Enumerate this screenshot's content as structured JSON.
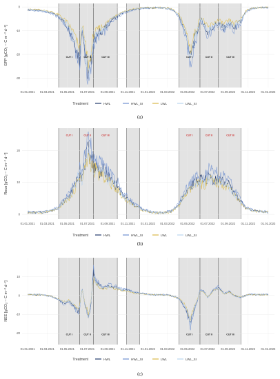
{
  "chart_data": [
    {
      "type": "line",
      "caption": "(a)",
      "ylabel": "GPP [gCO₂ – C m⁻² d⁻¹]",
      "ylim": [
        -34,
        1.5
      ],
      "yticks": [
        0,
        -10,
        -20,
        -30
      ],
      "xlim": [
        "2020-12-15",
        "2023-01-20"
      ],
      "xticks": [
        "01.01.2021",
        "01.03.2021",
        "01.05.2021",
        "01.07.2021",
        "01.09.2021",
        "01.11.2021",
        "01.01.2022",
        "01.03.2022",
        "01.05.2022",
        "01.07.2022",
        "01.09.2022",
        "01.11.2022",
        "01.01.2023"
      ],
      "cut_regions": [
        [
          "2021-04-05",
          "2022-11-25"
        ]
      ],
      "shaded_ranges": [
        [
          "2021-04-05",
          "2021-06-08"
        ],
        [
          "2021-06-08",
          "2021-07-20"
        ],
        [
          "2021-07-20",
          "2021-09-30"
        ],
        [
          "2021-10-28",
          "2021-12-07"
        ],
        [
          "2022-04-05",
          "2022-06-08"
        ],
        [
          "2022-06-08",
          "2022-08-03"
        ],
        [
          "2022-08-03",
          "2022-10-10"
        ]
      ],
      "cut_labels": [
        {
          "text": "CUT I",
          "x": "2021-05-07"
        },
        {
          "text": "CUT II",
          "x": "2021-07-01"
        },
        {
          "text": "CUT III",
          "x": "2021-08-25"
        },
        {
          "text": "CUT I",
          "x": "2022-05-07"
        },
        {
          "text": "CUT II",
          "x": "2022-07-05"
        },
        {
          "text": "CUT III",
          "x": "2022-09-08"
        }
      ],
      "cut_label_y": -21.5,
      "series_profile": [
        [
          "2021-01-01",
          -1.2
        ],
        [
          "2021-02-15",
          -1.6
        ],
        [
          "2021-03-15",
          -2.5
        ],
        [
          "2021-04-05",
          -4
        ],
        [
          "2021-04-20",
          -6
        ],
        [
          "2021-05-05",
          -9
        ],
        [
          "2021-05-20",
          -13
        ],
        [
          "2021-06-01",
          -19
        ],
        [
          "2021-06-08",
          -22
        ],
        [
          "2021-06-15",
          -8
        ],
        [
          "2021-06-25",
          -20
        ],
        [
          "2021-07-05",
          -30
        ],
        [
          "2021-07-12",
          -24
        ],
        [
          "2021-07-20",
          -14
        ],
        [
          "2021-08-05",
          -11
        ],
        [
          "2021-08-25",
          -9
        ],
        [
          "2021-09-15",
          -5
        ],
        [
          "2021-09-30",
          -4
        ],
        [
          "2021-10-15",
          -2.5
        ],
        [
          "2021-10-28",
          -2
        ],
        [
          "2021-11-20",
          -1
        ],
        [
          "2021-12-15",
          -0.5
        ],
        [
          "2022-02-01",
          -0.3
        ],
        [
          "2022-03-01",
          -0.5
        ],
        [
          "2022-03-20",
          -1.5
        ],
        [
          "2022-04-05",
          -4
        ],
        [
          "2022-04-20",
          -9
        ],
        [
          "2022-05-01",
          -15
        ],
        [
          "2022-05-10",
          -22
        ],
        [
          "2022-05-20",
          -15
        ],
        [
          "2022-06-01",
          -10
        ],
        [
          "2022-06-08",
          -5
        ],
        [
          "2022-06-20",
          -7
        ],
        [
          "2022-07-01",
          -11
        ],
        [
          "2022-07-20",
          -8
        ],
        [
          "2022-08-03",
          -7
        ],
        [
          "2022-08-20",
          -9
        ],
        [
          "2022-09-05",
          -7
        ],
        [
          "2022-09-20",
          -9
        ],
        [
          "2022-10-10",
          -6
        ],
        [
          "2022-10-25",
          -2
        ],
        [
          "2022-11-10",
          -0.8
        ],
        [
          "2022-12-01",
          -0.3
        ],
        [
          "2023-01-01",
          -0.2
        ]
      ],
      "series": [
        {
          "name": "HWL",
          "scale": 1.0,
          "color": "#223a6b"
        },
        {
          "name": "HWL_SI",
          "scale": 1.12,
          "color": "#6f8fd0"
        },
        {
          "name": "LWL",
          "scale": 0.82,
          "color": "#d9b846"
        },
        {
          "name": "LWL_SI",
          "scale": 0.95,
          "color": "#b9d4ee"
        }
      ]
    },
    {
      "type": "line",
      "caption": "(b)",
      "ylabel": "Reco [gCO₂ – C m⁻² d⁻¹]",
      "ylim": [
        -1.5,
        27
      ],
      "yticks": [
        0,
        10,
        20
      ],
      "xlim": [
        "2020-12-15",
        "2023-01-20"
      ],
      "xticks": [
        "01.01.2021",
        "01.03.2021",
        "01.05.2021",
        "01.07.2021",
        "01.09.2021",
        "01.11.2021",
        "01.01.2022",
        "01.03.2022",
        "01.05.2022",
        "01.07.2022",
        "01.09.2022",
        "01.11.2022",
        "01.01.2023"
      ],
      "shaded_ranges": [
        [
          "2021-04-05",
          "2021-06-08"
        ],
        [
          "2021-06-08",
          "2021-07-20"
        ],
        [
          "2021-07-20",
          "2021-09-30"
        ],
        [
          "2021-10-28",
          "2021-12-07"
        ],
        [
          "2022-04-05",
          "2022-06-08"
        ],
        [
          "2022-06-08",
          "2022-08-03"
        ],
        [
          "2022-08-03",
          "2022-10-10"
        ]
      ],
      "cut_labels": [
        {
          "text": "CUT I",
          "x": "2021-05-07"
        },
        {
          "text": "CUT II",
          "x": "2021-07-01"
        },
        {
          "text": "CUT III",
          "x": "2021-08-25"
        },
        {
          "text": "CUT I",
          "x": "2022-05-07"
        },
        {
          "text": "CUT II",
          "x": "2022-07-05"
        },
        {
          "text": "CUT III",
          "x": "2022-09-08"
        }
      ],
      "cut_label_y": 24.5,
      "series_profile": [
        [
          "2021-01-01",
          0.6
        ],
        [
          "2021-02-15",
          0.6
        ],
        [
          "2021-03-15",
          1.2
        ],
        [
          "2021-04-05",
          2
        ],
        [
          "2021-04-20",
          4
        ],
        [
          "2021-05-10",
          6
        ],
        [
          "2021-05-25",
          9
        ],
        [
          "2021-06-08",
          14
        ],
        [
          "2021-06-15",
          11
        ],
        [
          "2021-06-25",
          17
        ],
        [
          "2021-07-05",
          20
        ],
        [
          "2021-07-15",
          17
        ],
        [
          "2021-07-20",
          16
        ],
        [
          "2021-08-05",
          14
        ],
        [
          "2021-08-25",
          13
        ],
        [
          "2021-09-15",
          10
        ],
        [
          "2021-09-30",
          9
        ],
        [
          "2021-10-15",
          6
        ],
        [
          "2021-10-28",
          5
        ],
        [
          "2021-11-20",
          3
        ],
        [
          "2021-12-15",
          1.5
        ],
        [
          "2022-01-15",
          0.6
        ],
        [
          "2022-02-15",
          0.5
        ],
        [
          "2022-03-15",
          1
        ],
        [
          "2022-04-05",
          3
        ],
        [
          "2022-04-20",
          6
        ],
        [
          "2022-05-05",
          8
        ],
        [
          "2022-05-25",
          10
        ],
        [
          "2022-06-08",
          11
        ],
        [
          "2022-06-20",
          10
        ],
        [
          "2022-07-05",
          12
        ],
        [
          "2022-07-20",
          11
        ],
        [
          "2022-08-03",
          11
        ],
        [
          "2022-08-20",
          10
        ],
        [
          "2022-09-05",
          9
        ],
        [
          "2022-09-25",
          6
        ],
        [
          "2022-10-10",
          4
        ],
        [
          "2022-10-25",
          2
        ],
        [
          "2022-11-15",
          1.2
        ],
        [
          "2022-12-15",
          0.8
        ],
        [
          "2023-01-01",
          0.8
        ]
      ],
      "series": [
        {
          "name": "HWL",
          "scale": 1.0,
          "color": "#223a6b"
        },
        {
          "name": "HWL_SI",
          "scale": 1.15,
          "color": "#6f8fd0"
        },
        {
          "name": "LWL",
          "scale": 0.9,
          "color": "#d9b846"
        },
        {
          "name": "LWL_SI",
          "scale": 0.95,
          "color": "#b9d4ee"
        }
      ]
    },
    {
      "type": "line",
      "caption": "(c)",
      "ylabel": "NEE [gCO₂ – C m⁻² d⁻¹]",
      "ylim": [
        -26,
        20
      ],
      "yticks": [
        10,
        0,
        -10,
        -20
      ],
      "xlim": [
        "2020-12-15",
        "2023-01-20"
      ],
      "xticks": [
        "01.01.2021",
        "01.03.2021",
        "01.05.2021",
        "01.07.2021",
        "01.09.2021",
        "01.11.2021",
        "01.01.2022",
        "01.03.2022",
        "01.05.2022",
        "01.07.2022",
        "01.09.2022",
        "01.11.2022",
        "01.01.2023"
      ],
      "shaded_ranges": [
        [
          "2021-04-05",
          "2021-06-08"
        ],
        [
          "2021-06-08",
          "2021-07-20"
        ],
        [
          "2021-07-20",
          "2021-09-30"
        ],
        [
          "2021-10-28",
          "2021-12-07"
        ],
        [
          "2022-04-05",
          "2022-06-08"
        ],
        [
          "2022-06-08",
          "2022-08-03"
        ],
        [
          "2022-08-03",
          "2022-10-10"
        ]
      ],
      "cut_labels": [
        {
          "text": "CUT I",
          "x": "2021-05-07"
        },
        {
          "text": "CUT II",
          "x": "2021-07-01"
        },
        {
          "text": "CUT III",
          "x": "2021-08-25"
        },
        {
          "text": "CUT I",
          "x": "2022-05-07"
        },
        {
          "text": "CUT II",
          "x": "2022-07-05"
        },
        {
          "text": "CUT III",
          "x": "2022-09-08"
        }
      ],
      "cut_label_y": -21,
      "series_profile": [
        [
          "2021-01-01",
          0.5
        ],
        [
          "2021-02-15",
          0.4
        ],
        [
          "2021-03-15",
          -0.5
        ],
        [
          "2021-04-05",
          -2
        ],
        [
          "2021-04-20",
          -4
        ],
        [
          "2021-05-05",
          -3
        ],
        [
          "2021-05-20",
          -5
        ],
        [
          "2021-06-01",
          -9
        ],
        [
          "2021-06-08",
          -6
        ],
        [
          "2021-06-15",
          4
        ],
        [
          "2021-06-25",
          -6
        ],
        [
          "2021-07-05",
          -11
        ],
        [
          "2021-07-12",
          -4
        ],
        [
          "2021-07-20",
          12
        ],
        [
          "2021-07-28",
          7
        ],
        [
          "2021-08-15",
          4
        ],
        [
          "2021-09-05",
          5
        ],
        [
          "2021-09-30",
          4
        ],
        [
          "2021-10-15",
          3
        ],
        [
          "2021-10-28",
          3
        ],
        [
          "2021-11-20",
          1.5
        ],
        [
          "2021-12-15",
          1
        ],
        [
          "2022-01-15",
          0.4
        ],
        [
          "2022-03-01",
          0.3
        ],
        [
          "2022-03-20",
          -0.5
        ],
        [
          "2022-04-05",
          -1.5
        ],
        [
          "2022-04-20",
          -5
        ],
        [
          "2022-05-01",
          -9
        ],
        [
          "2022-05-10",
          -15
        ],
        [
          "2022-05-20",
          -8
        ],
        [
          "2022-06-01",
          -2
        ],
        [
          "2022-06-08",
          3
        ],
        [
          "2022-06-20",
          2
        ],
        [
          "2022-07-01",
          -1
        ],
        [
          "2022-07-20",
          3
        ],
        [
          "2022-08-03",
          4
        ],
        [
          "2022-08-20",
          1
        ],
        [
          "2022-09-05",
          2
        ],
        [
          "2022-09-20",
          0
        ],
        [
          "2022-10-10",
          -1
        ],
        [
          "2022-10-25",
          0
        ],
        [
          "2022-11-10",
          0.6
        ],
        [
          "2022-12-01",
          0.5
        ],
        [
          "2023-01-01",
          0.4
        ]
      ],
      "series": [
        {
          "name": "HWL",
          "scale": 1.0,
          "color": "#223a6b"
        },
        {
          "name": "HWL_SI",
          "scale": 1.15,
          "color": "#6f8fd0"
        },
        {
          "name": "LWL",
          "scale": 0.85,
          "color": "#d9b846"
        },
        {
          "name": "LWL_SI",
          "scale": 0.95,
          "color": "#b9d4ee"
        }
      ]
    }
  ],
  "legend": {
    "title": "Treatment",
    "items": [
      "HWL",
      "HWL_SI",
      "LWL",
      "LWL_SI"
    ]
  }
}
